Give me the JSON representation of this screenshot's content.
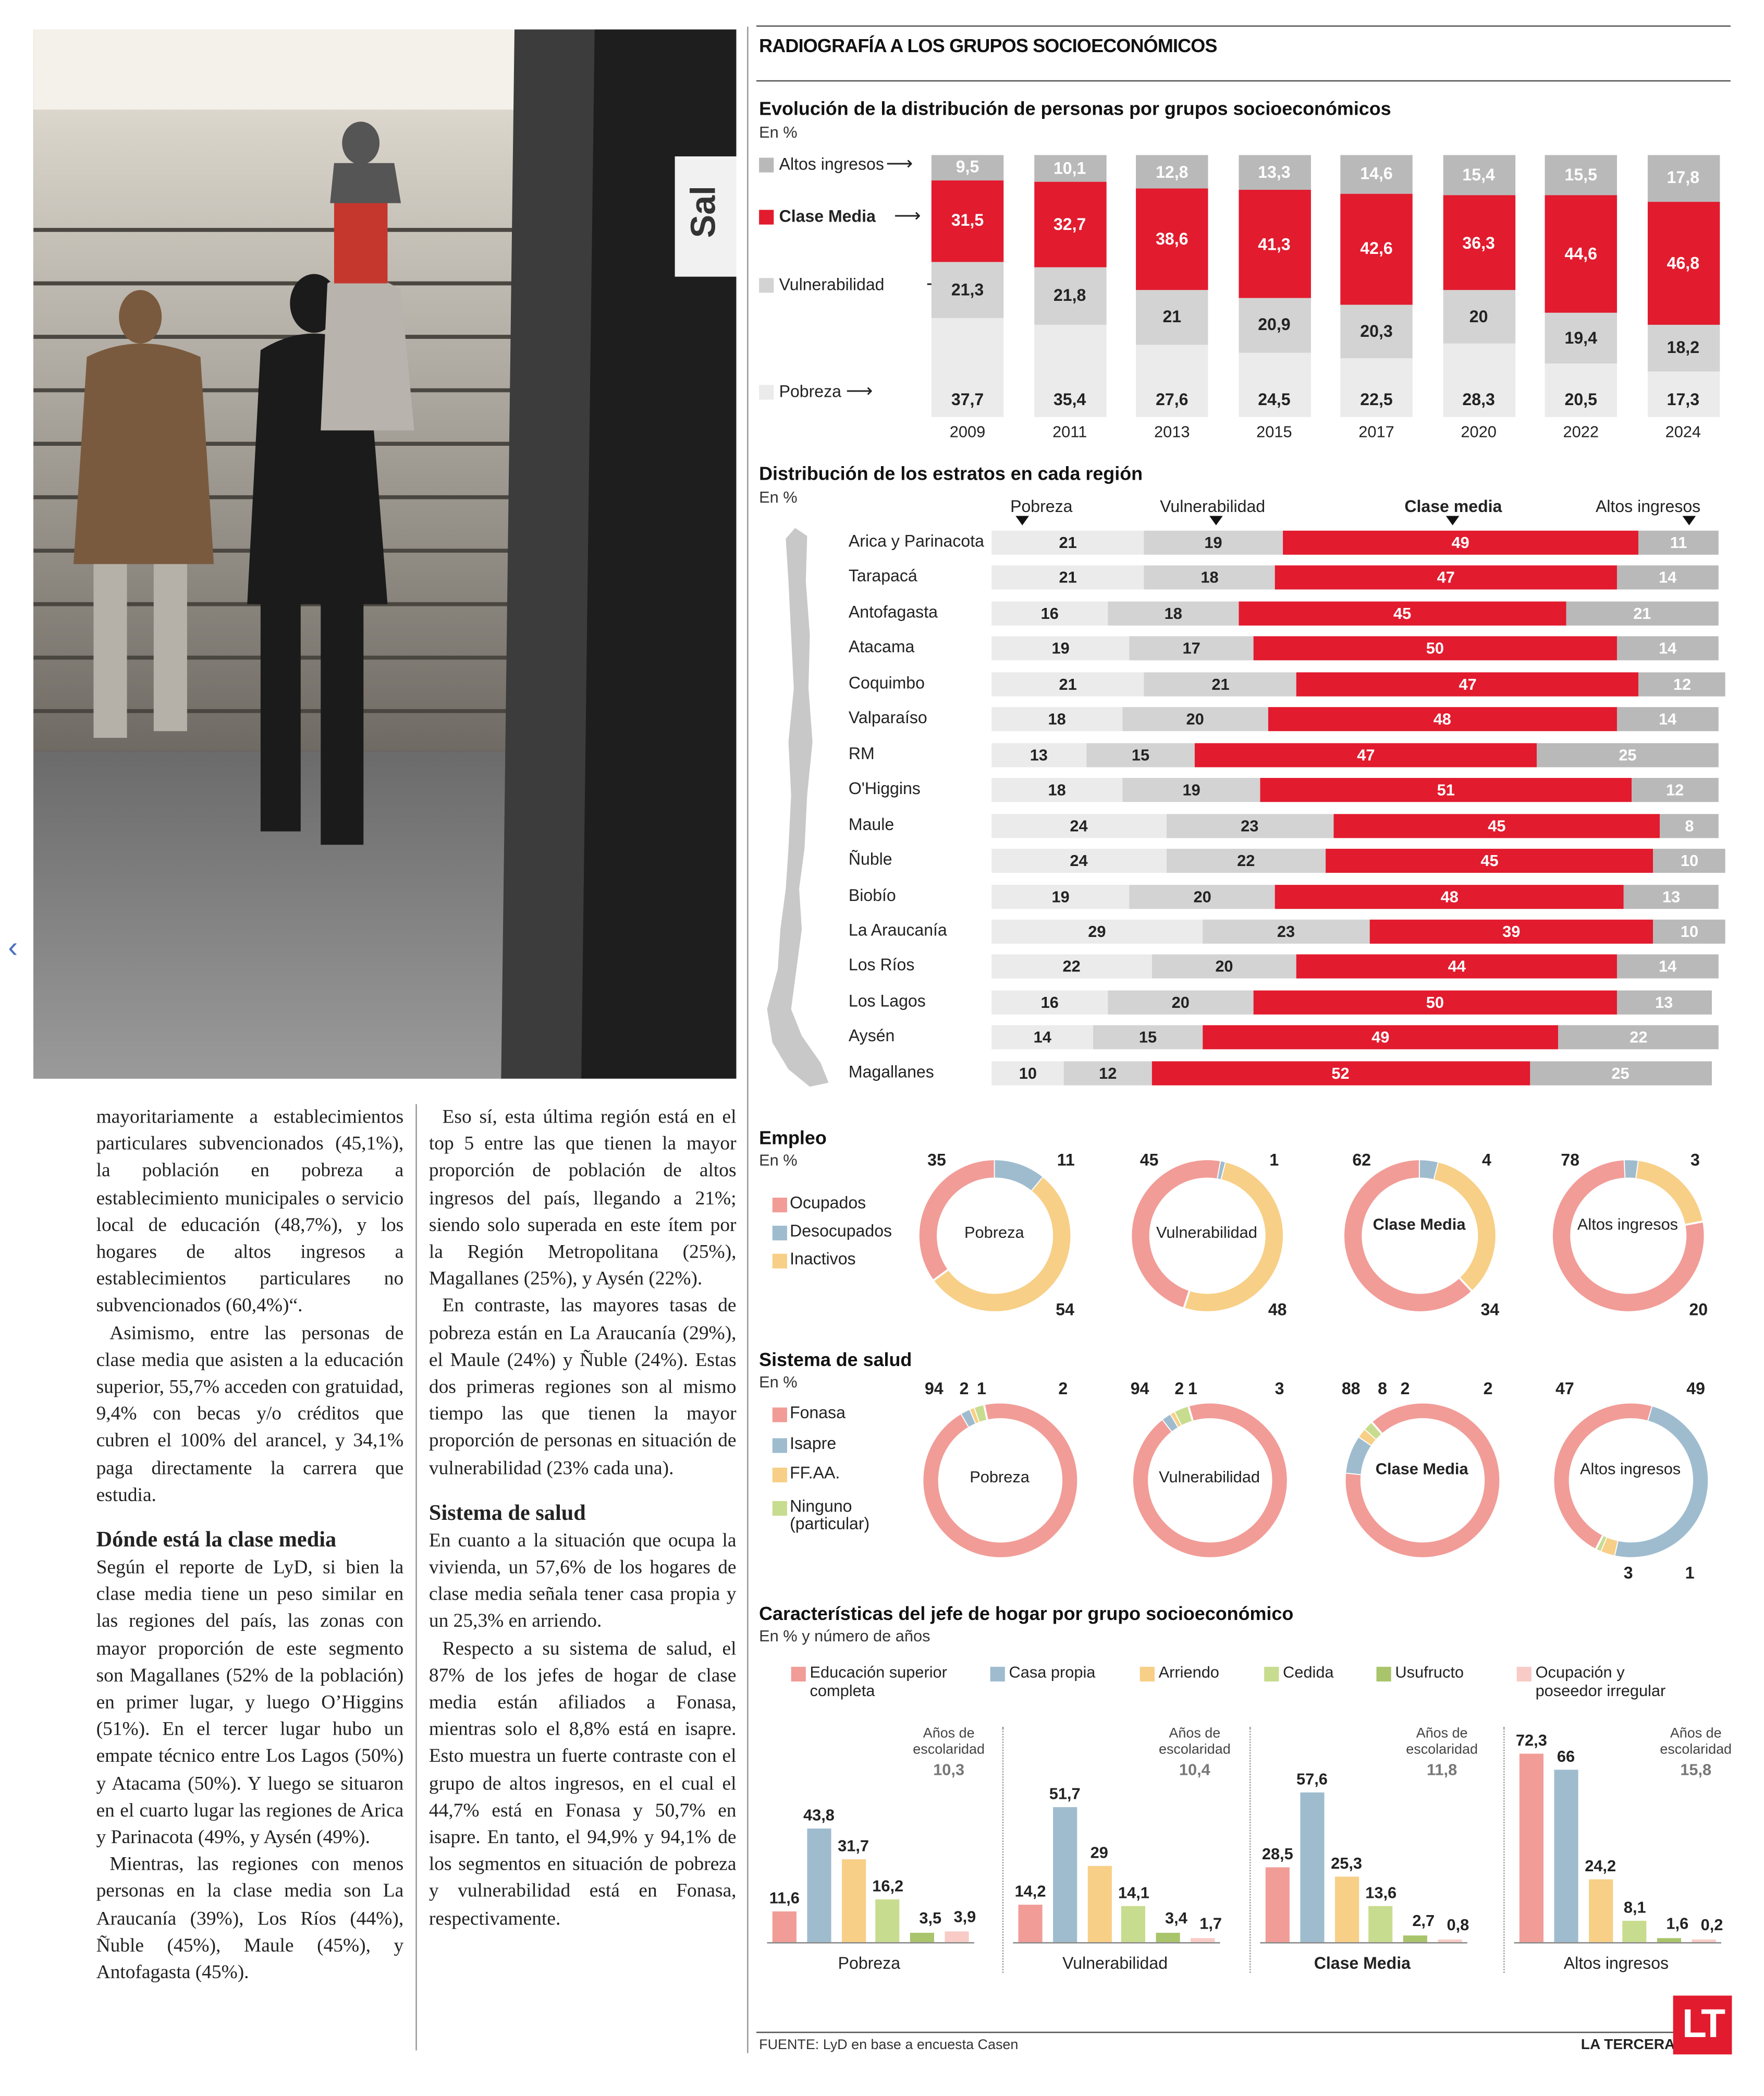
{
  "article": {
    "col1_paragraphs": [
      "mayoritariamente a estableci­mientos particulares subvencio­nados (45,1%), la población en pobreza a establecimiento mu­nicipales o servicio local de edu­cación (48,7%), y los hogares de altos ingresos a establecimientos particulares no subvencionados (60,4%)“.",
      "Asimismo, entre las personas de clase media que asisten a la edu­cación superior, 55,7% acceden con gratuidad, 9,4% con becas y/o créditos que cubren el 100% del arancel, y 34,1% paga directa­mente la carrera que estudia."
    ],
    "col1_heading": "Dónde está la clase media",
    "col1_paragraphs2": [
      "Según el reporte de LyD, si bien la clase media tiene un peso similar en las regiones del país, las zonas con mayor proporción de este segmento son Magallanes (52% de la población) en primer lugar, y luego O’Higgins (51%). En el ter­cer lugar hubo un empate técnico entre Los Lagos (50%) y Atacama (50%). Y luego se situaron en el cuarto lugar las regiones de Arica y Parinacota (49%, y Aysén (49%).",
      "Mientras, las regiones con me­nos personas en la clase media son La Araucanía (39%), Los Ríos (44%), Ñuble (45%), Maule (45%), y Antofagasta (45%)."
    ],
    "col2_paragraphs": [
      "Eso sí, esta última región está en el top 5 entre las que tienen la mayor proporción de población de altos ingresos del país, llegan­do a 21%; siendo solo superada en este ítem por la Región Metropo­litana (25%), Magallanes (25%), y Aysén (22%).",
      "En contraste, las mayores tasas de pobreza están en La Arauca­nía (29%), el Maule (24%) y Ñuble (24%). Estas dos primeras regio­nes son al mismo tiempo las que tienen la mayor proporción de personas en situación de vulne­rabilidad (23% cada una)."
    ],
    "col2_heading": "Sistema de salud",
    "col2_paragraphs2": [
      "En cuanto a la situación que ocu­pa la vivienda, un 57,6% de los hogares de clase media señala tener casa propia y un 25,3% en arriendo.",
      "Respecto a su sistema de salud, el 87% de los jefes de hogar de clase media están afiliados a Fo­nasa, mientras solo el 8,8% está en isapre. Esto muestra un fuer­te contraste con el grupo de altos ingresos, en el cual el 44,7% está en Fonasa y 50,7% en isapre. En tanto, el 94,9% y 94,1% de los seg­mentos en situación de pobreza y vulnerabilidad está en Fonasa, respectivamente."
    ],
    "photo_sign": "Sal"
  },
  "infographic": {
    "title": "RADIOGRAFÍA A LOS GRUPOS SOCIOECONÓMICOS",
    "colors": {
      "altos": "#b9b9b9",
      "clase_media": "#e21b2e",
      "vulnerabilidad": "#d3d3d3",
      "pobreza": "#ebebeb",
      "ocupados": "#f19c97",
      "desocupados": "#9fbccf",
      "inactivos": "#f7cf86",
      "ninguno": "#c8dc8f",
      "usufructo": "#a9c46b",
      "ocupacion_irregular": "#f8cbc6",
      "red_text": "#ffffff"
    },
    "evolucion": {
      "title": "Evolución de la distribución de personas por grupos socioeconómicos",
      "unit": "En %",
      "legend": [
        "Altos ingresos",
        "Clase Media",
        "Vulnerabilidad",
        "Pobreza"
      ],
      "arrow": "⟶"
    },
    "regiones": {
      "title": "Distribución de los estratos en cada región",
      "unit": "En %",
      "headers": [
        "Pobreza",
        "Vulnerabilidad",
        "Clase media",
        "Altos ingresos"
      ]
    },
    "empleo": {
      "title": "Empleo",
      "unit": "En %",
      "legend": [
        "Ocupados",
        "Desocupados",
        "Inactivos"
      ]
    },
    "salud": {
      "title": "Sistema de salud",
      "unit": "En %",
      "legend": [
        "Fonasa",
        "Isapre",
        "FF.AA.",
        "Ninguno",
        "(particular)"
      ]
    },
    "jefe": {
      "title": "Características del jefe de hogar por grupo socioeconómico",
      "unit": "En % y número de años",
      "legend": [
        "Educación superior",
        "completa",
        "Casa propia",
        "Arriendo",
        "Cedida",
        "Usufructo",
        "Ocupación y",
        "poseedor irregular"
      ],
      "escolaridad_label": [
        "Años de",
        "escolaridad"
      ]
    },
    "source": "FUENTE: LyD en base a encuesta Casen",
    "brand": "LA TERCERA",
    "logo": "LT"
  },
  "chart_data": [
    {
      "type": "bar",
      "stacked": true,
      "title": "Evolución de la distribución de personas por grupos socioeconómicos",
      "unit": "En %",
      "categories": [
        "2009",
        "2011",
        "2013",
        "2015",
        "2017",
        "2020",
        "2022",
        "2024"
      ],
      "series": [
        {
          "name": "Pobreza",
          "values": [
            37.7,
            35.4,
            27.6,
            24.5,
            22.5,
            28.3,
            20.5,
            17.3
          ],
          "labels": [
            "37,7",
            "35,4",
            "27,6",
            "24,5",
            "22,5",
            "28,3",
            "20,5",
            "17,3"
          ]
        },
        {
          "name": "Vulnerabilidad",
          "values": [
            21.3,
            21.8,
            21,
            20.9,
            20.3,
            20,
            19.4,
            18.2
          ],
          "labels": [
            "21,3",
            "21,8",
            "21",
            "20,9",
            "20,3",
            "20",
            "19,4",
            "18,2"
          ]
        },
        {
          "name": "Clase Media",
          "values": [
            31.5,
            32.7,
            38.6,
            41.3,
            42.6,
            36.3,
            44.6,
            46.8
          ],
          "labels": [
            "31,5",
            "32,7",
            "38,6",
            "41,3",
            "42,6",
            "36,3",
            "44,6",
            "46,8"
          ]
        },
        {
          "name": "Altos ingresos",
          "values": [
            9.5,
            10.1,
            12.8,
            13.3,
            14.6,
            15.4,
            15.5,
            17.8
          ],
          "labels": [
            "9,5",
            "10,1",
            "12,8",
            "13,3",
            "14,6",
            "15,4",
            "15,5",
            "17,8"
          ]
        }
      ]
    },
    {
      "type": "bar",
      "stacked": true,
      "orientation": "horizontal",
      "title": "Distribución de los estratos en cada región",
      "unit": "En %",
      "categories": [
        "Arica y Parinacota",
        "Tarapacá",
        "Antofagasta",
        "Atacama",
        "Coquimbo",
        "Valparaíso",
        "RM",
        "O'Higgins",
        "Maule",
        "Ñuble",
        "Biobío",
        "La Araucanía",
        "Los Ríos",
        "Los Lagos",
        "Aysén",
        "Magallanes"
      ],
      "series": [
        {
          "name": "Pobreza",
          "values": [
            21,
            21,
            16,
            19,
            21,
            18,
            13,
            18,
            24,
            24,
            19,
            29,
            22,
            16,
            14,
            10
          ]
        },
        {
          "name": "Vulnerabilidad",
          "values": [
            19,
            18,
            18,
            17,
            21,
            20,
            15,
            19,
            23,
            22,
            20,
            23,
            20,
            20,
            15,
            12
          ]
        },
        {
          "name": "Clase media",
          "values": [
            49,
            47,
            45,
            50,
            47,
            48,
            47,
            51,
            45,
            45,
            48,
            39,
            44,
            50,
            49,
            52
          ]
        },
        {
          "name": "Altos ingresos",
          "values": [
            11,
            14,
            21,
            14,
            12,
            14,
            25,
            12,
            8,
            10,
            13,
            10,
            14,
            13,
            22,
            25
          ]
        }
      ]
    },
    {
      "type": "pie",
      "donut": true,
      "title": "Empleo",
      "unit": "En %",
      "legend": [
        "Ocupados",
        "Desocupados",
        "Inactivos"
      ],
      "groups": [
        {
          "name": "Pobreza",
          "values": [
            35,
            11,
            54
          ]
        },
        {
          "name": "Vulnerabilidad",
          "values": [
            45,
            1,
            48
          ]
        },
        {
          "name": "Clase Media",
          "values": [
            62,
            4,
            34
          ]
        },
        {
          "name": "Altos ingresos",
          "values": [
            78,
            3,
            20
          ]
        }
      ]
    },
    {
      "type": "pie",
      "donut": true,
      "title": "Sistema de salud",
      "unit": "En %",
      "legend": [
        "Fonasa",
        "Isapre",
        "FF.AA.",
        "Ninguno (particular)"
      ],
      "groups": [
        {
          "name": "Pobreza",
          "values": [
            94,
            2,
            1,
            2
          ]
        },
        {
          "name": "Vulnerabilidad",
          "values": [
            94,
            2,
            1,
            3
          ]
        },
        {
          "name": "Clase Media",
          "values": [
            88,
            8,
            2,
            2
          ]
        },
        {
          "name": "Altos ingresos",
          "values": [
            47,
            49,
            3,
            1
          ]
        }
      ]
    },
    {
      "type": "bar",
      "title": "Características del jefe de hogar por grupo socioeconómico",
      "unit": "En % y número de años",
      "legend": [
        "Educación superior completa",
        "Casa propia",
        "Arriendo",
        "Cedida",
        "Usufructo",
        "Ocupación y poseedor irregular"
      ],
      "groups": [
        {
          "name": "Pobreza",
          "escolaridad": "10,3",
          "values": [
            11.6,
            43.8,
            31.7,
            16.2,
            3.5,
            3.9
          ],
          "labels": [
            "11,6",
            "43,8",
            "31,7",
            "16,2",
            "3,5",
            "3,9"
          ]
        },
        {
          "name": "Vulnerabilidad",
          "escolaridad": "10,4",
          "values": [
            14.2,
            51.7,
            29,
            14.1,
            3.4,
            1.7
          ],
          "labels": [
            "14,2",
            "51,7",
            "29",
            "14,1",
            "3,4",
            "1,7"
          ]
        },
        {
          "name": "Clase Media",
          "escolaridad": "11,8",
          "values": [
            28.5,
            57.6,
            25.3,
            13.6,
            2.7,
            0.8
          ],
          "labels": [
            "28,5",
            "57,6",
            "25,3",
            "13,6",
            "2,7",
            "0,8"
          ]
        },
        {
          "name": "Altos ingresos",
          "escolaridad": "15,8",
          "values": [
            72.3,
            66,
            24.2,
            8.1,
            1.6,
            0.2
          ],
          "labels": [
            "72,3",
            "66",
            "24,2",
            "8,1",
            "1,6",
            "0,2"
          ]
        }
      ]
    }
  ]
}
